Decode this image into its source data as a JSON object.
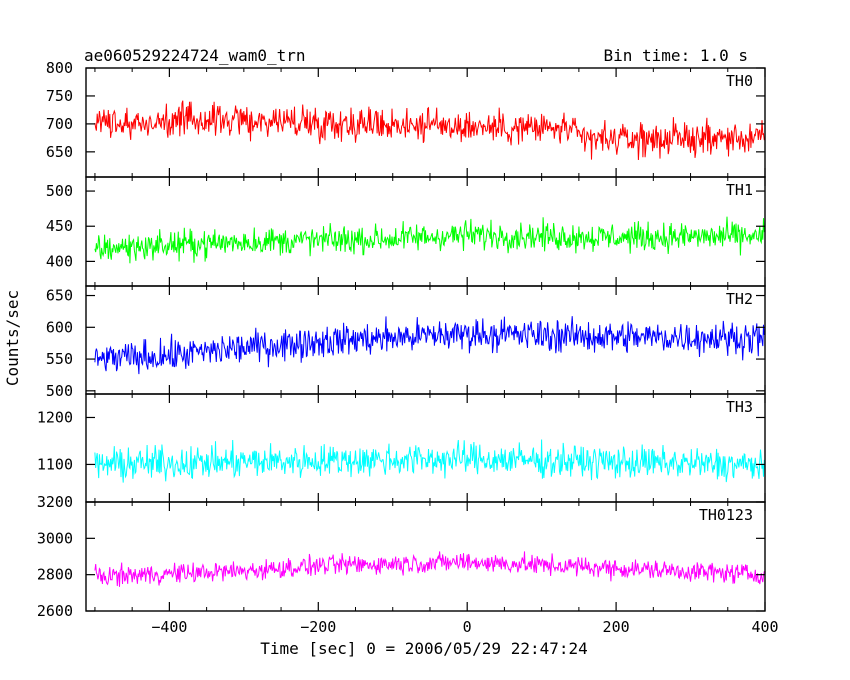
{
  "header": {
    "title": "ae060529224724_wam0_trn",
    "bin_time": "Bin time: 1.0 s"
  },
  "chart_data": {
    "type": "line",
    "xlabel": "Time [sec] 0 = 2006/05/29 22:47:24",
    "ylabel": "Counts/sec",
    "xlim": [
      -512,
      400
    ],
    "xticks": [
      -400,
      -200,
      0,
      200,
      400
    ],
    "x_tick_labels": [
      "−400",
      "−200",
      "0",
      "200",
      "400"
    ],
    "bin_time_s": 1.0,
    "series": [
      {
        "name": "TH0",
        "color": "#ff0000",
        "ylim": [
          605,
          800
        ],
        "yticks": [
          650,
          700,
          750,
          800
        ],
        "mean_profile": {
          "x": [
            -500,
            -380,
            -360,
            -120,
            -100,
            140,
            150,
            400
          ],
          "y": [
            700,
            705,
            708,
            700,
            700,
            690,
            672,
            675
          ]
        },
        "amplitude": 32,
        "sample_values": [
          700,
          712,
          688,
          725,
          705,
          690,
          742,
          681,
          698,
          716
        ]
      },
      {
        "name": "TH1",
        "color": "#00ff00",
        "ylim": [
          365,
          520
        ],
        "yticks": [
          400,
          450,
          500
        ],
        "mean_profile": {
          "x": [
            -500,
            -300,
            -100,
            0,
            200,
            400
          ],
          "y": [
            418,
            428,
            432,
            438,
            434,
            436
          ]
        },
        "amplitude": 22,
        "sample_values": [
          420,
          432,
          410,
          445,
          428,
          415,
          450,
          425,
          438,
          430
        ]
      },
      {
        "name": "TH2",
        "color": "#0000ff",
        "ylim": [
          495,
          665
        ],
        "yticks": [
          500,
          550,
          600,
          650
        ],
        "mean_profile": {
          "x": [
            -500,
            -400,
            -300,
            -200,
            0,
            200,
            400
          ],
          "y": [
            550,
            555,
            568,
            578,
            590,
            585,
            583
          ]
        },
        "amplitude": 28,
        "sample_values": [
          552,
          575,
          540,
          590,
          560,
          548,
          598,
          565,
          580,
          570
        ]
      },
      {
        "name": "TH3",
        "color": "#00ffff",
        "ylim": [
          1020,
          1250
        ],
        "yticks": [
          1100,
          1200
        ],
        "mean_profile": {
          "x": [
            -500,
            -200,
            0,
            200,
            400
          ],
          "y": [
            1100,
            1108,
            1112,
            1105,
            1098
          ]
        },
        "amplitude": 38,
        "sample_values": [
          1098,
          1130,
          1072,
          1150,
          1110,
          1085,
          1165,
          1100,
          1120,
          1105
        ]
      },
      {
        "name": "TH0123",
        "color": "#ff00ff",
        "ylim": [
          2600,
          3200
        ],
        "yticks": [
          2600,
          2800,
          3000,
          3200
        ],
        "mean_profile": {
          "x": [
            -500,
            -300,
            -200,
            0,
            200,
            400
          ],
          "y": [
            2790,
            2820,
            2850,
            2870,
            2835,
            2800
          ]
        },
        "amplitude": 60,
        "sample_values": [
          2800,
          2860,
          2740,
          2900,
          2820,
          2780,
          2950,
          2810,
          2870,
          2830
        ]
      }
    ]
  }
}
